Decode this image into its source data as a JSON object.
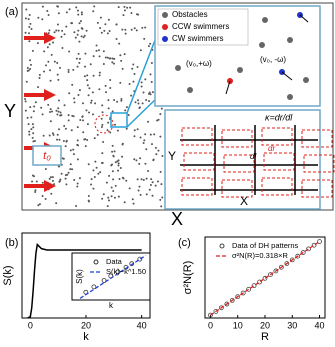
{
  "panel_a": {
    "label": "(a)",
    "y_label": "Y",
    "x_label": "X",
    "t_label": "t₀",
    "legend": [
      "Obstacles",
      "CCW swimmers",
      "CW swimmers"
    ],
    "ccw_label": "(v₀,+ω)",
    "cw_label": "(v₀, -ω)",
    "inset": {
      "kappa": "κ=dr/dl",
      "dl": "dl",
      "dr": "dr",
      "y_label": "Y",
      "x_label": "X"
    }
  },
  "chart_data": [
    {
      "type": "line",
      "label": "(b)",
      "x_label": "k",
      "y_label": "S(k)",
      "xlim": [
        -3,
        43
      ],
      "ylim": [
        0,
        1.25
      ],
      "xticks": [
        0,
        20,
        40
      ],
      "series": [
        {
          "color": "#000000",
          "style": "solid",
          "x": [
            -1,
            0,
            0.5,
            1,
            1.5,
            2,
            2.5,
            3,
            4,
            6,
            10,
            20,
            30,
            40
          ],
          "values": [
            0,
            0.02,
            0.15,
            0.4,
            0.7,
            0.95,
            1.08,
            1.06,
            1.02,
            1.0,
            1.0,
            1.0,
            1.0,
            1.0
          ]
        }
      ]
    },
    {
      "type": "line",
      "x_label": "k",
      "y_label": "S(k)",
      "xscale": "log",
      "yscale": "log",
      "xlim": [
        0.01,
        0.5
      ],
      "ylim": [
        0.0005,
        0.1
      ],
      "series": [
        {
          "name": "Data",
          "color": "#333333",
          "style": "markers",
          "x": [
            0.02,
            0.03,
            0.05,
            0.07,
            0.1,
            0.15,
            0.2,
            0.3
          ],
          "values": [
            0.0012,
            0.0022,
            0.0045,
            0.0075,
            0.012,
            0.02,
            0.03,
            0.05
          ]
        },
        {
          "name": "S(k)~k^1.50",
          "color": "#1f3fd6",
          "style": "dashed",
          "x": [
            0.015,
            0.4
          ],
          "values": [
            0.0006,
            0.075
          ]
        }
      ]
    },
    {
      "type": "line",
      "label": "(c)",
      "x_label": "R",
      "y_label": "σ²N(R)",
      "xlim": [
        -2,
        42
      ],
      "ylim": [
        -0.5,
        13.5
      ],
      "xticks": [
        0,
        10,
        20,
        30,
        40
      ],
      "series": [
        {
          "name": "Data of DH patterns",
          "color": "#444444",
          "style": "markers",
          "x": [
            0,
            2,
            4,
            6,
            8,
            10,
            12,
            14,
            16,
            18,
            20,
            22,
            24,
            26,
            28,
            30,
            32,
            34,
            36,
            38,
            40
          ],
          "values": [
            0,
            0.64,
            1.27,
            1.91,
            2.54,
            3.18,
            3.82,
            4.45,
            5.09,
            5.72,
            6.36,
            7.0,
            7.63,
            8.27,
            8.9,
            9.54,
            10.18,
            10.81,
            11.45,
            12.08,
            12.72
          ]
        },
        {
          "name": "σ²N(R)=0.318×R",
          "color": "#e0201b",
          "style": "dashed",
          "x": [
            0,
            40
          ],
          "values": [
            0,
            12.72
          ]
        }
      ]
    }
  ]
}
